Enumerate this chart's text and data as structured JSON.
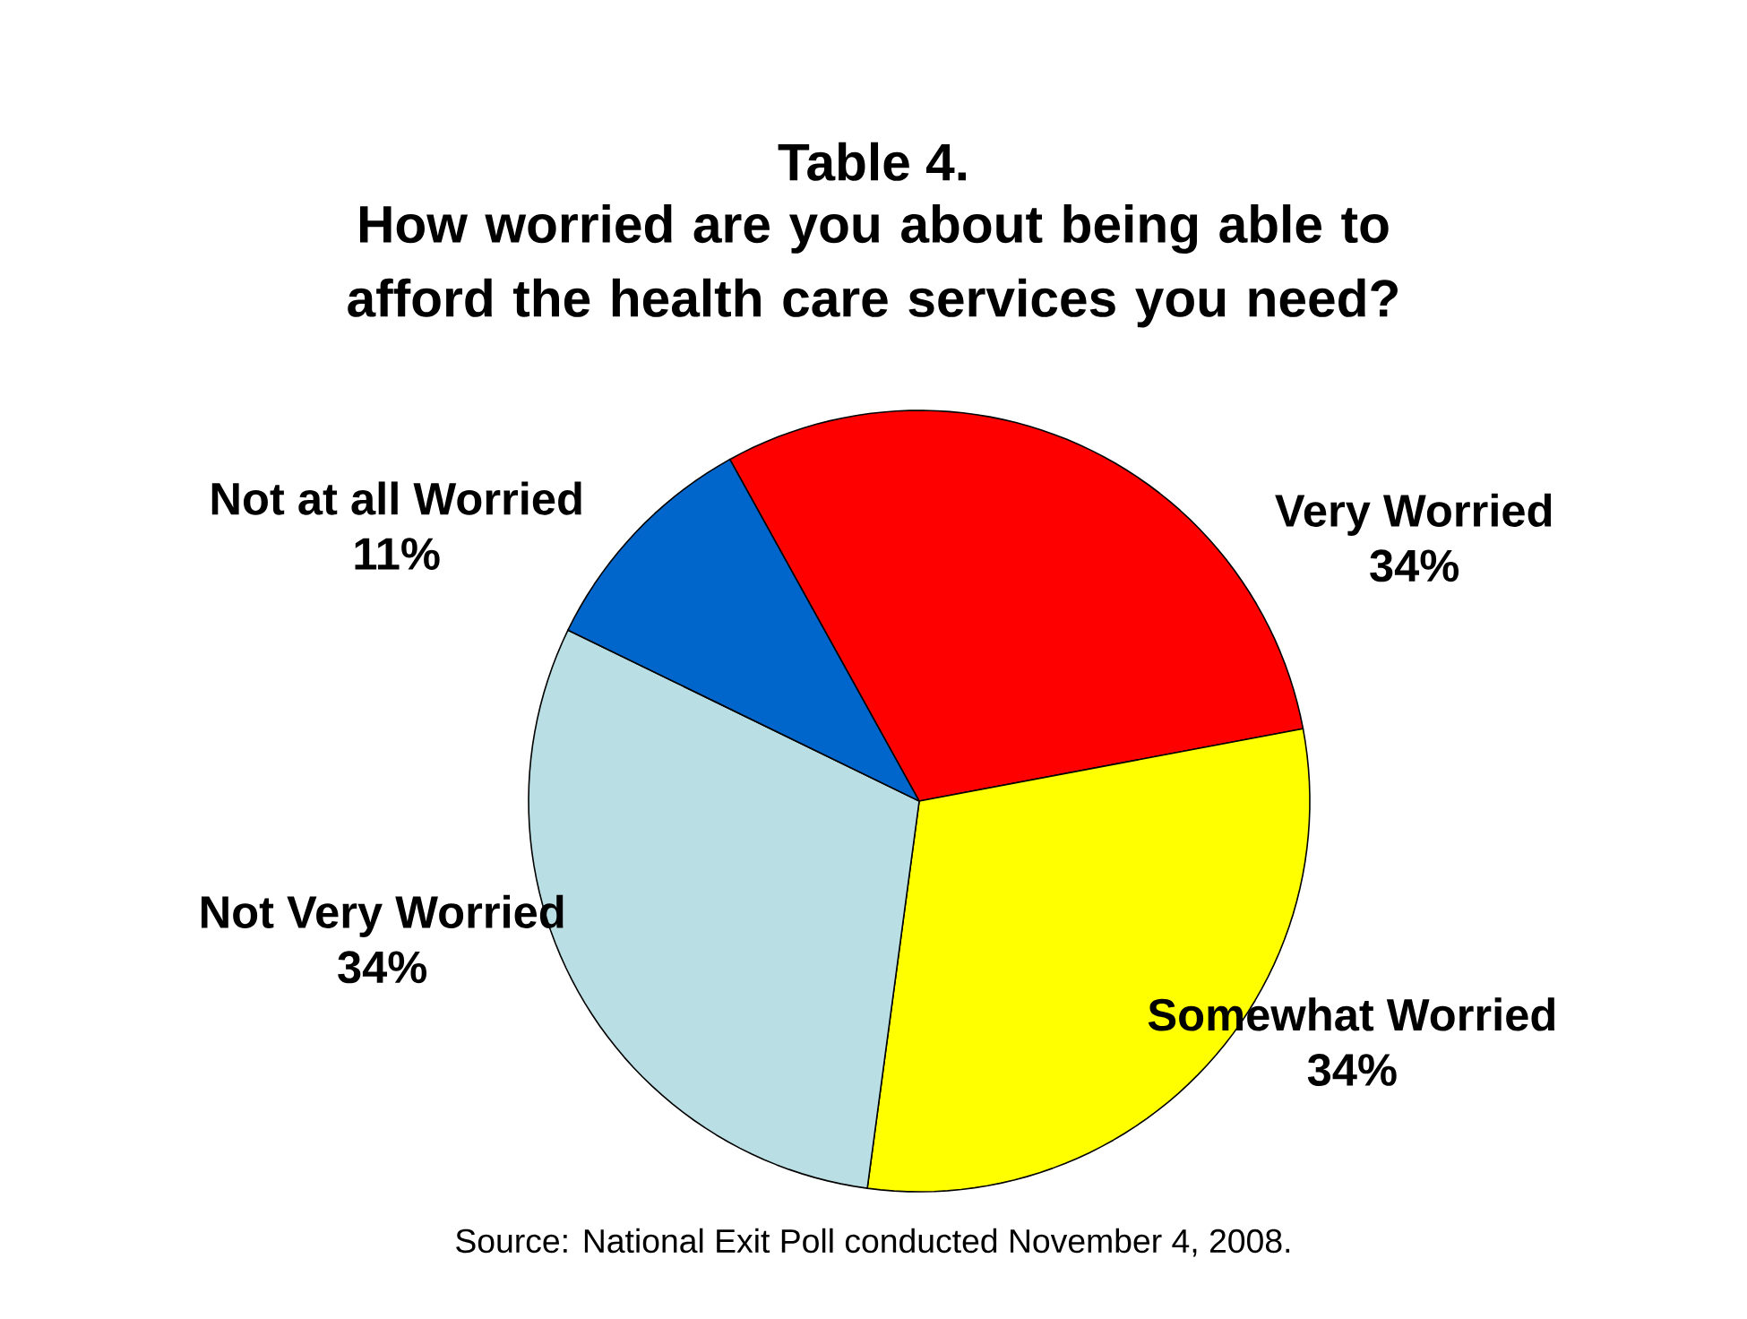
{
  "chart_data": {
    "type": "pie",
    "title": "Table 4.",
    "subtitle": "How worried are you about being able to afford the health care services you need?",
    "categories": [
      "Very Worried",
      "Somewhat Worried",
      "Not Very Worried",
      "Not at all Worried"
    ],
    "values": [
      34,
      34,
      34,
      11
    ],
    "value_labels": [
      "34%",
      "34%",
      "34%",
      "11%"
    ],
    "colors": [
      "#ff0000",
      "#ffff00",
      "#b9dfe4",
      "#0066cc"
    ],
    "annotations": [
      "Source: National Exit Poll conducted November 4, 2008."
    ]
  }
}
